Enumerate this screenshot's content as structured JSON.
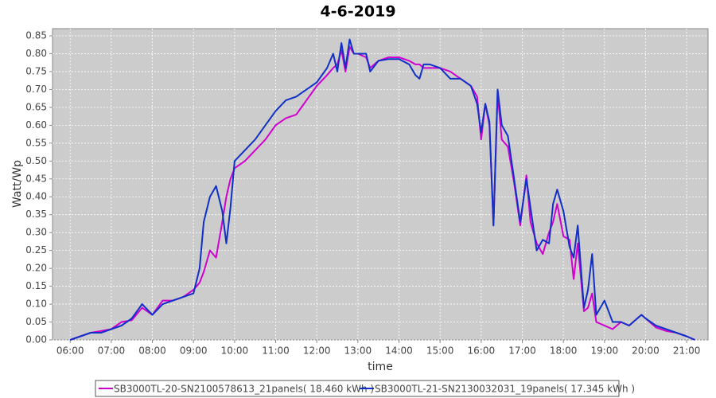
{
  "chart_data": {
    "type": "line",
    "title": "4-6-2019",
    "xlabel": "time",
    "ylabel": "Watt/Wp",
    "x": [
      6.0,
      6.25,
      6.5,
      6.75,
      7.0,
      7.25,
      7.5,
      7.75,
      8.0,
      8.25,
      8.5,
      8.75,
      9.0,
      9.15,
      9.25,
      9.4,
      9.55,
      9.7,
      9.8,
      9.9,
      10.0,
      10.25,
      10.5,
      10.75,
      11.0,
      11.25,
      11.5,
      11.75,
      12.0,
      12.25,
      12.4,
      12.5,
      12.6,
      12.7,
      12.8,
      12.9,
      13.0,
      13.2,
      13.3,
      13.5,
      13.75,
      14.0,
      14.25,
      14.4,
      14.5,
      14.6,
      14.75,
      15.0,
      15.25,
      15.5,
      15.75,
      15.9,
      16.0,
      16.1,
      16.2,
      16.3,
      16.4,
      16.5,
      16.65,
      16.8,
      16.95,
      17.1,
      17.2,
      17.35,
      17.5,
      17.65,
      17.75,
      17.85,
      18.0,
      18.15,
      18.25,
      18.35,
      18.5,
      18.6,
      18.7,
      18.8,
      19.0,
      19.2,
      19.4,
      19.6,
      19.8,
      19.9,
      20.0,
      20.25,
      20.5,
      20.75,
      21.0,
      21.2
    ],
    "series": [
      {
        "name": "SB3000TL-20-SN2100578613_21panels( 18.460 kWh )",
        "color": "#d000d0",
        "values": [
          0,
          0.01,
          0.02,
          0.025,
          0.03,
          0.05,
          0.055,
          0.09,
          0.07,
          0.11,
          0.11,
          0.12,
          0.14,
          0.16,
          0.19,
          0.25,
          0.23,
          0.33,
          0.4,
          0.45,
          0.48,
          0.5,
          0.53,
          0.56,
          0.6,
          0.62,
          0.63,
          0.67,
          0.71,
          0.74,
          0.76,
          0.77,
          0.81,
          0.75,
          0.82,
          0.8,
          0.8,
          0.79,
          0.76,
          0.78,
          0.79,
          0.79,
          0.78,
          0.77,
          0.77,
          0.76,
          0.76,
          0.76,
          0.75,
          0.73,
          0.71,
          0.68,
          0.56,
          0.66,
          0.6,
          0.32,
          0.69,
          0.56,
          0.54,
          0.44,
          0.32,
          0.46,
          0.33,
          0.27,
          0.24,
          0.3,
          0.33,
          0.38,
          0.29,
          0.28,
          0.17,
          0.27,
          0.08,
          0.09,
          0.13,
          0.05,
          0.04,
          0.03,
          0.05,
          0.04,
          0.06,
          0.07,
          0.06,
          0.035,
          0.025,
          0.02,
          0.01,
          0
        ]
      },
      {
        "name": "SB3000TL-21-SN2130032031_19panels( 17.345 kWh )",
        "color": "#1030c8",
        "values": [
          0,
          0.01,
          0.02,
          0.02,
          0.03,
          0.04,
          0.06,
          0.1,
          0.07,
          0.1,
          0.11,
          0.12,
          0.13,
          0.2,
          0.33,
          0.4,
          0.43,
          0.36,
          0.27,
          0.37,
          0.5,
          0.53,
          0.56,
          0.6,
          0.64,
          0.67,
          0.68,
          0.7,
          0.72,
          0.76,
          0.8,
          0.75,
          0.83,
          0.76,
          0.84,
          0.8,
          0.8,
          0.8,
          0.75,
          0.78,
          0.785,
          0.785,
          0.77,
          0.74,
          0.73,
          0.77,
          0.77,
          0.76,
          0.73,
          0.73,
          0.71,
          0.66,
          0.58,
          0.66,
          0.61,
          0.32,
          0.7,
          0.6,
          0.57,
          0.45,
          0.33,
          0.45,
          0.37,
          0.25,
          0.28,
          0.27,
          0.38,
          0.42,
          0.36,
          0.26,
          0.23,
          0.32,
          0.09,
          0.14,
          0.24,
          0.07,
          0.11,
          0.05,
          0.05,
          0.04,
          0.06,
          0.07,
          0.06,
          0.04,
          0.03,
          0.02,
          0.01,
          0
        ]
      }
    ],
    "xlim": [
      5.57,
      21.52
    ],
    "xticks": [
      {
        "value": 6,
        "label": "06:00"
      },
      {
        "value": 7,
        "label": "07:00"
      },
      {
        "value": 8,
        "label": "08:00"
      },
      {
        "value": 9,
        "label": "09:00"
      },
      {
        "value": 10,
        "label": "10:00"
      },
      {
        "value": 11,
        "label": "11:00"
      },
      {
        "value": 12,
        "label": "12:00"
      },
      {
        "value": 13,
        "label": "13:00"
      },
      {
        "value": 14,
        "label": "14:00"
      },
      {
        "value": 15,
        "label": "15:00"
      },
      {
        "value": 16,
        "label": "16:00"
      },
      {
        "value": 17,
        "label": "17:00"
      },
      {
        "value": 18,
        "label": "18:00"
      },
      {
        "value": 19,
        "label": "19:00"
      },
      {
        "value": 20,
        "label": "20:00"
      },
      {
        "value": 21,
        "label": "21:00"
      }
    ],
    "ylim": [
      0,
      0.87
    ],
    "yticks": [
      {
        "value": 0,
        "label": "0.00"
      },
      {
        "value": 0.05,
        "label": "0.05"
      },
      {
        "value": 0.1,
        "label": "0.10"
      },
      {
        "value": 0.15,
        "label": "0.15"
      },
      {
        "value": 0.2,
        "label": "0.20"
      },
      {
        "value": 0.25,
        "label": "0.25"
      },
      {
        "value": 0.3,
        "label": "0.30"
      },
      {
        "value": 0.35,
        "label": "0.35"
      },
      {
        "value": 0.4,
        "label": "0.40"
      },
      {
        "value": 0.45,
        "label": "0.45"
      },
      {
        "value": 0.5,
        "label": "0.50"
      },
      {
        "value": 0.55,
        "label": "0.55"
      },
      {
        "value": 0.6,
        "label": "0.60"
      },
      {
        "value": 0.65,
        "label": "0.65"
      },
      {
        "value": 0.7,
        "label": "0.70"
      },
      {
        "value": 0.75,
        "label": "0.75"
      },
      {
        "value": 0.8,
        "label": "0.80"
      },
      {
        "value": 0.85,
        "label": "0.85"
      }
    ],
    "grid": true,
    "legend": "bottom"
  }
}
